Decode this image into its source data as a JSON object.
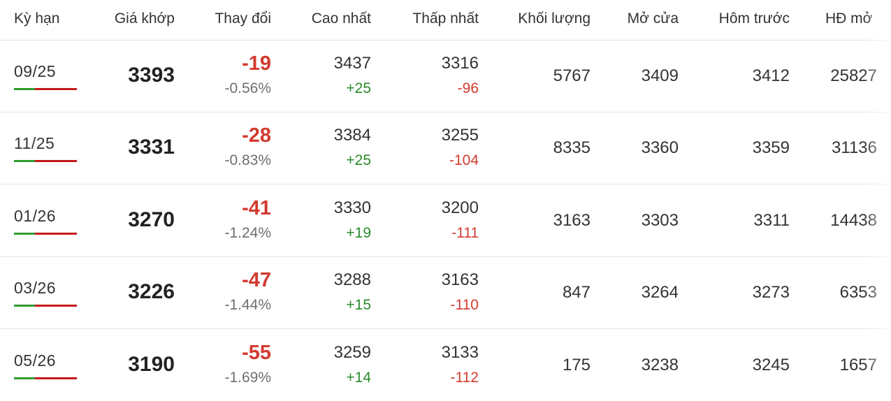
{
  "headers": {
    "term": "Kỳ hạn",
    "price": "Giá khớp",
    "change": "Thay đổi",
    "high": "Cao nhất",
    "low": "Thấp nhất",
    "volume": "Khối lượng",
    "open": "Mở cửa",
    "prev": "Hôm trước",
    "oi": "HĐ mở"
  },
  "rows": [
    {
      "term": "09/25",
      "price": "3393",
      "change": "-19",
      "change_pct": "-0.56%",
      "high": "3437",
      "high_diff": "+25",
      "low": "3316",
      "low_diff": "-96",
      "volume": "5767",
      "open": "3409",
      "prev": "3412",
      "oi": "25827"
    },
    {
      "term": "11/25",
      "price": "3331",
      "change": "-28",
      "change_pct": "-0.83%",
      "high": "3384",
      "high_diff": "+25",
      "low": "3255",
      "low_diff": "-104",
      "volume": "8335",
      "open": "3360",
      "prev": "3359",
      "oi": "31136"
    },
    {
      "term": "01/26",
      "price": "3270",
      "change": "-41",
      "change_pct": "-1.24%",
      "high": "3330",
      "high_diff": "+19",
      "low": "3200",
      "low_diff": "-111",
      "volume": "3163",
      "open": "3303",
      "prev": "3311",
      "oi": "14438"
    },
    {
      "term": "03/26",
      "price": "3226",
      "change": "-47",
      "change_pct": "-1.44%",
      "high": "3288",
      "high_diff": "+15",
      "low": "3163",
      "low_diff": "-110",
      "volume": "847",
      "open": "3264",
      "prev": "3273",
      "oi": "6353"
    },
    {
      "term": "05/26",
      "price": "3190",
      "change": "-55",
      "change_pct": "-1.69%",
      "high": "3259",
      "high_diff": "+14",
      "low": "3133",
      "low_diff": "-112",
      "volume": "175",
      "open": "3238",
      "prev": "3245",
      "oi": "1657"
    }
  ],
  "colors": {
    "up": "#2a8a2a",
    "down": "#d23a2f",
    "bar_green": "#2e9a2e",
    "bar_red": "#c41a1a"
  }
}
